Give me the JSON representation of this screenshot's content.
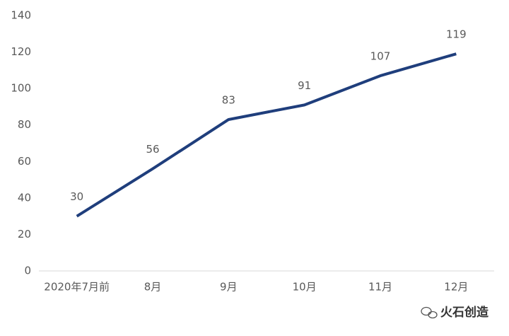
{
  "chart_data": {
    "type": "line",
    "categories": [
      "2020年7月前",
      "8月",
      "9月",
      "10月",
      "11月",
      "12月"
    ],
    "series": [
      {
        "color": "#1f3e7c",
        "values": [
          30,
          56,
          83,
          91,
          107,
          119
        ]
      }
    ],
    "ylim": [
      0,
      140
    ],
    "yticks": [
      0,
      20,
      40,
      60,
      80,
      100,
      120,
      140
    ],
    "grid": false,
    "data_labels": true,
    "watermark": "火石创造"
  }
}
